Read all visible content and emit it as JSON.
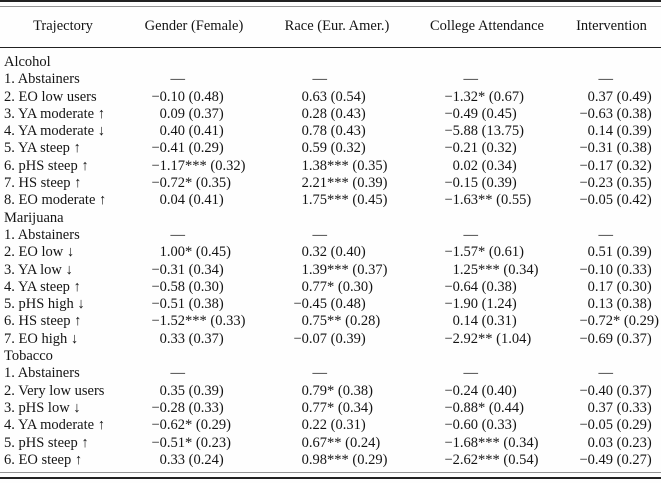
{
  "table": {
    "columns": [
      "Trajectory",
      "Gender (Female)",
      "Race (Eur. Amer.)",
      "College Attendance",
      "Intervention"
    ],
    "missing_marker": "—",
    "sections": [
      {
        "name": "Alcohol",
        "rows": [
          {
            "label": "1. Abstainers",
            "values": [
              "—",
              "—",
              "—",
              "—"
            ]
          },
          {
            "label": "2. EO low users",
            "values": [
              "−0.10 (0.48)",
              "0.63 (0.54)",
              "−1.32* (0.67)",
              "0.37 (0.49)"
            ]
          },
          {
            "label": "3. YA moderate ↑",
            "values": [
              "0.09 (0.37)",
              "0.28 (0.43)",
              "−0.49 (0.45)",
              "−0.63 (0.38)"
            ]
          },
          {
            "label": "4. YA moderate ↓",
            "values": [
              "0.40 (0.41)",
              "0.78 (0.43)",
              "−5.88 (13.75)",
              "0.14 (0.39)"
            ]
          },
          {
            "label": "5. YA steep ↑",
            "values": [
              "−0.41 (0.29)",
              "0.59 (0.32)",
              "−0.21 (0.32)",
              "−0.31 (0.38)"
            ]
          },
          {
            "label": "6. pHS steep ↑",
            "values": [
              "−1.17*** (0.32)",
              "1.38*** (0.35)",
              "0.02 (0.34)",
              "−0.17 (0.32)"
            ]
          },
          {
            "label": "7. HS steep ↑",
            "values": [
              "−0.72* (0.35)",
              "2.21*** (0.39)",
              "−0.15 (0.39)",
              "−0.23 (0.35)"
            ]
          },
          {
            "label": "8. EO moderate ↑",
            "values": [
              "0.04 (0.41)",
              "1.75*** (0.45)",
              "−1.63** (0.55)",
              "−0.05 (0.42)"
            ]
          }
        ]
      },
      {
        "name": "Marijuana",
        "rows": [
          {
            "label": "1. Abstainers",
            "values": [
              "—",
              "—",
              "—",
              "—"
            ]
          },
          {
            "label": "2. EO low ↓",
            "values": [
              "1.00* (0.45)",
              "0.32 (0.40)",
              "−1.57* (0.61)",
              "0.51 (0.39)"
            ]
          },
          {
            "label": "3. YA low ↓",
            "values": [
              "−0.31 (0.34)",
              "1.39*** (0.37)",
              "1.25*** (0.34)",
              "−0.10 (0.33)"
            ]
          },
          {
            "label": "4. YA steep ↑",
            "values": [
              "−0.58 (0.30)",
              "0.77* (0.30)",
              "−0.64 (0.38)",
              "0.17 (0.30)"
            ]
          },
          {
            "label": "5. pHS high ↓",
            "values": [
              "−0.51 (0.38)",
              "−0.45 (0.48)",
              "−1.90 (1.24)",
              "0.13 (0.38)"
            ]
          },
          {
            "label": "6. HS steep ↑",
            "values": [
              "−1.52*** (0.33)",
              "0.75** (0.28)",
              "0.14 (0.31)",
              "−0.72* (0.29)"
            ]
          },
          {
            "label": "7. EO high ↓",
            "values": [
              "0.33 (0.37)",
              "−0.07 (0.39)",
              "−2.92** (1.04)",
              "−0.69 (0.37)"
            ]
          }
        ]
      },
      {
        "name": "Tobacco",
        "rows": [
          {
            "label": "1. Abstainers",
            "values": [
              "—",
              "—",
              "—",
              "—"
            ]
          },
          {
            "label": "2. Very low users",
            "values": [
              "0.35 (0.39)",
              "0.79* (0.38)",
              "−0.24 (0.40)",
              "−0.40 (0.37)"
            ]
          },
          {
            "label": "3. pHS low ↓",
            "values": [
              "−0.28 (0.33)",
              "0.77* (0.34)",
              "−0.88* (0.44)",
              "0.37 (0.33)"
            ]
          },
          {
            "label": "4. YA moderate ↑",
            "values": [
              "−0.62* (0.29)",
              "0.22 (0.31)",
              "−0.60 (0.33)",
              "−0.05 (0.29)"
            ]
          },
          {
            "label": "5. pHS steep ↑",
            "values": [
              "−0.51* (0.23)",
              "0.67** (0.24)",
              "−1.68*** (0.34)",
              "0.03 (0.23)"
            ]
          },
          {
            "label": "6. EO steep ↑",
            "values": [
              "0.33 (0.24)",
              "0.98*** (0.29)",
              "−2.62*** (0.54)",
              "−0.49 (0.27)"
            ]
          }
        ]
      }
    ]
  }
}
